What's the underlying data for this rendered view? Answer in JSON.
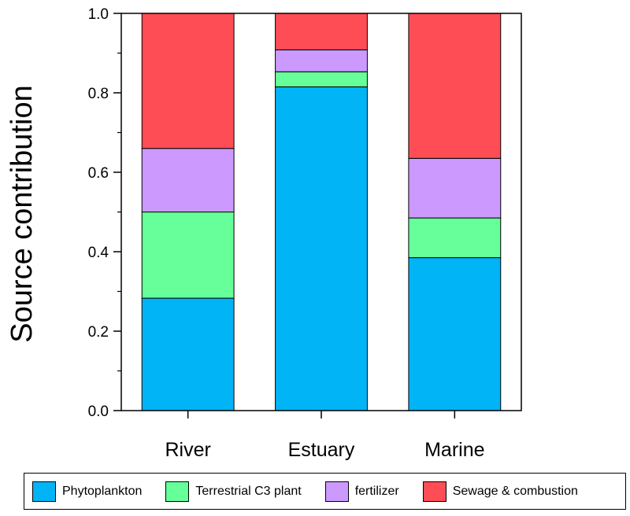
{
  "chart_data": {
    "type": "bar",
    "stacked": true,
    "categories": [
      "River",
      "Estuary",
      "Marine"
    ],
    "series": [
      {
        "name": "Phytoplankton",
        "color": "#00b4f5",
        "values": [
          0.283,
          0.815,
          0.385
        ]
      },
      {
        "name": "Terrestrial C3 plant",
        "color": "#66ff99",
        "values": [
          0.217,
          0.038,
          0.1
        ]
      },
      {
        "name": "fertilizer",
        "color": "#cc99ff",
        "values": [
          0.16,
          0.055,
          0.15
        ]
      },
      {
        "name": "Sewage & combustion",
        "color": "#ff4d55",
        "values": [
          0.34,
          0.092,
          0.365
        ]
      }
    ],
    "ylabel": "Source contribution",
    "xlabel": "",
    "ylim": [
      0,
      1.0
    ],
    "yticks": [
      "0.0",
      "0.2",
      "0.4",
      "0.6",
      "0.8",
      "1.0"
    ],
    "ytick_values": [
      0,
      0.2,
      0.4,
      0.6,
      0.8,
      1.0
    ],
    "legend_position": "bottom"
  },
  "legend": {
    "items": [
      {
        "label": "Phytoplankton",
        "color": "#00b4f5"
      },
      {
        "label": "Terrestrial C3 plant",
        "color": "#66ff99"
      },
      {
        "label": "fertilizer",
        "color": "#cc99ff"
      },
      {
        "label": "Sewage & combustion",
        "color": "#ff4d55"
      }
    ]
  }
}
